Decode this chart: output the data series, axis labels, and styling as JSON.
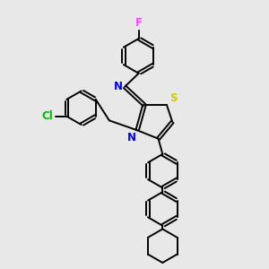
{
  "bg_color": "#e8e8e8",
  "atom_colors": {
    "N": "#0000ff",
    "S": "#cccc00",
    "F": "#ff44ff",
    "Cl": "#00bb00"
  },
  "bond_color": "#000000",
  "bond_width": 1.4,
  "dbo": 0.055
}
